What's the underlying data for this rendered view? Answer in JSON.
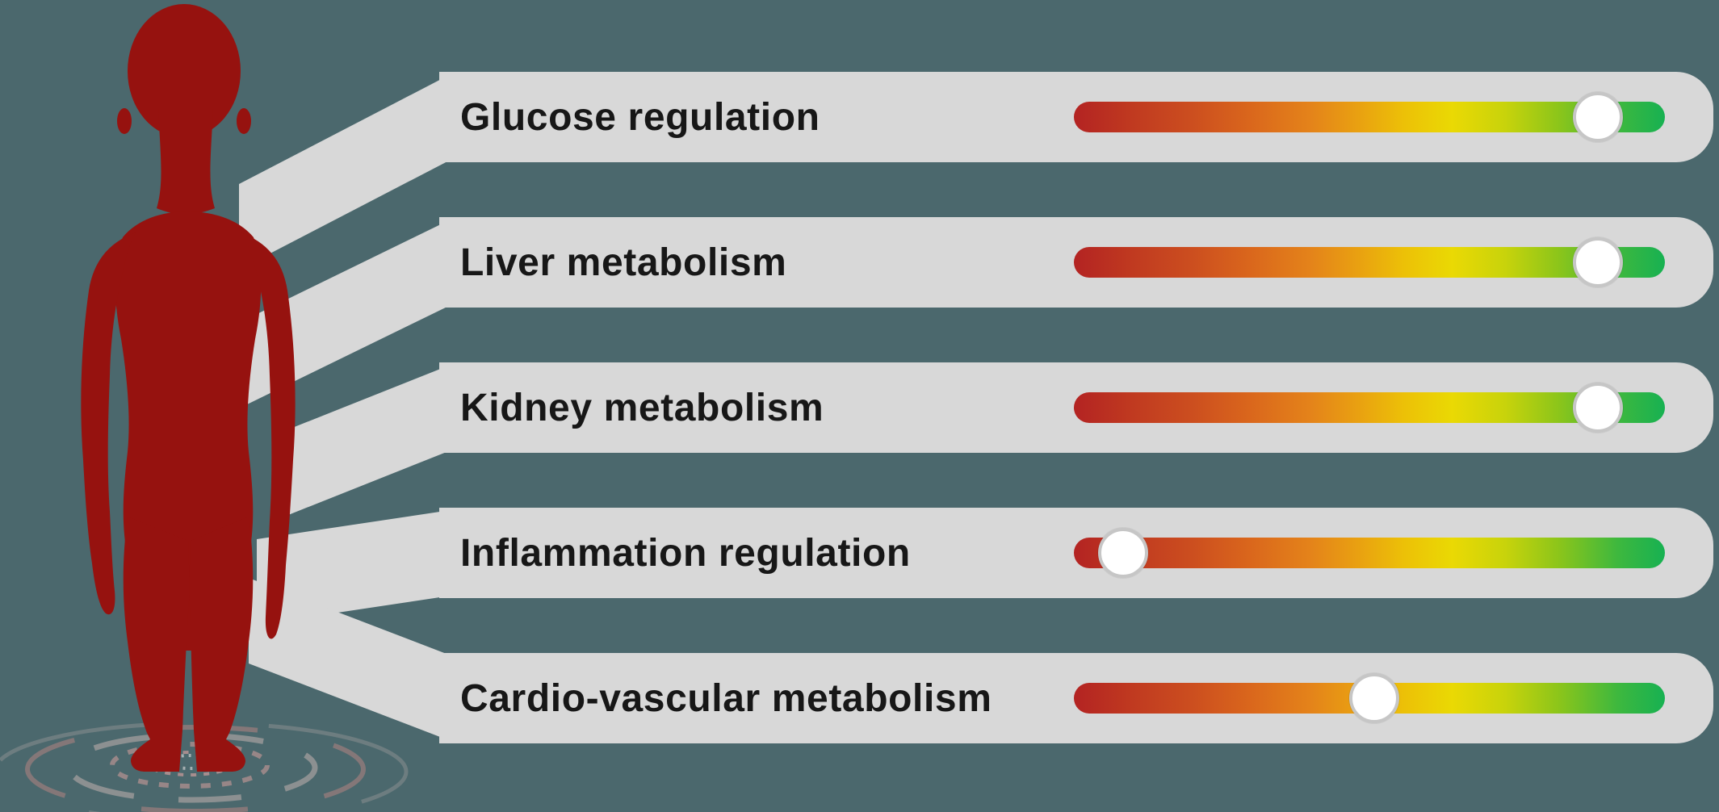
{
  "title": "Body metabolism health slider infographic",
  "colors": {
    "background": "#4b686d",
    "panel": "#d8d8d8",
    "body_silhouette": "#96120f",
    "label_text": "#171717",
    "knob_fill": "#ffffff",
    "knob_ring": "#c6c6c6",
    "ripple_gray": "#969696",
    "ripple_rose": "#ab8280",
    "gradient_scale": [
      "#b32322",
      "#cc4e1f",
      "#e4831a",
      "#ecc107",
      "#ead904",
      "#8cc51a",
      "#3eb83e",
      "#17b152"
    ]
  },
  "figure": {
    "name": "human-body-silhouette",
    "base_effect": "concentric-ripple-rings"
  },
  "rows": [
    {
      "label": "Glucose regulation",
      "value_pct": 88.6
    },
    {
      "label": "Liver metabolism",
      "value_pct": 88.6
    },
    {
      "label": "Kidney metabolism",
      "value_pct": 88.6
    },
    {
      "label": "Inflammation regulation",
      "value_pct": 8.3
    },
    {
      "label": "Cardio-vascular metabolism",
      "value_pct": 50.8
    }
  ],
  "scale": {
    "left_end": "red (low)",
    "right_end": "green (high)",
    "min_pct": 0,
    "max_pct": 100
  }
}
